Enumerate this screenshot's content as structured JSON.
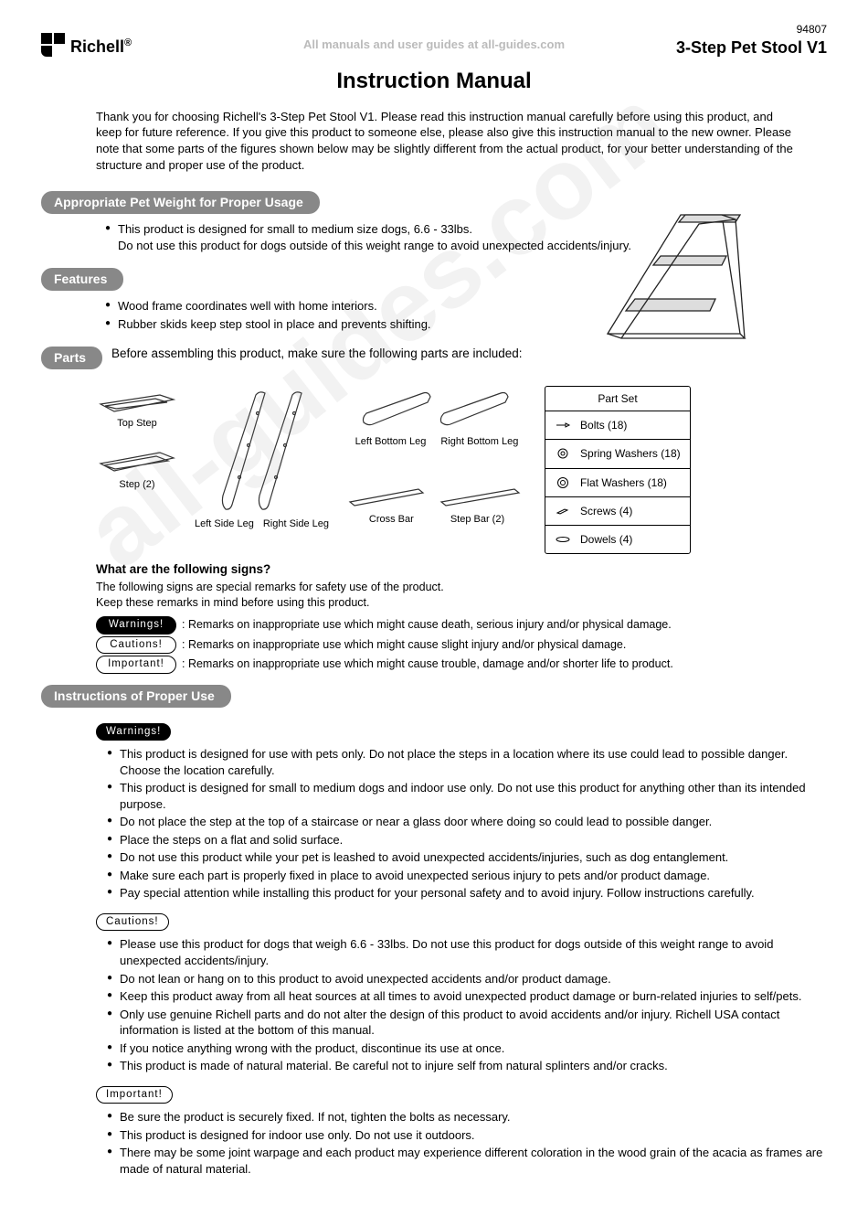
{
  "header": {
    "watermark_top": "All manuals and user guides at all-guides.com",
    "brand": "Richell",
    "model_no": "94807",
    "product_title": "3-Step Pet Stool V1",
    "main_title": "Instruction Manual"
  },
  "intro": "Thank you for choosing Richell's 3-Step Pet Stool V1. Please read this instruction manual carefully before using this product, and keep for future reference. If you give this product to someone else, please also give this instruction manual to the new owner. Please note that some parts of the figures shown below may be slightly different from the actual product, for your better understanding of the structure and proper use of the product.",
  "sections": {
    "weight": {
      "heading": "Appropriate Pet Weight for Proper Usage",
      "items": [
        "This product is designed for small to medium size dogs, 6.6 - 33lbs.\nDo not use this product for dogs outside of this weight range to avoid unexpected accidents/injury."
      ]
    },
    "features": {
      "heading": "Features",
      "items": [
        "Wood frame coordinates well with home interiors.",
        "Rubber skids keep step stool in place and prevents shifting."
      ]
    },
    "parts": {
      "heading": "Parts",
      "intro": "Before assembling this product, make sure the following parts are included:",
      "labels": {
        "top_step": "Top Step",
        "step2": "Step (2)",
        "left_side": "Left Side Leg",
        "right_side": "Right Side Leg",
        "left_bottom": "Left Bottom Leg",
        "right_bottom": "Right Bottom Leg",
        "cross_bar": "Cross Bar",
        "step_bar": "Step Bar (2)"
      },
      "part_set": {
        "title": "Part Set",
        "rows": [
          "Bolts (18)",
          "Spring Washers (18)",
          "Flat Washers (18)",
          "Screws (4)",
          "Dowels (4)"
        ]
      }
    },
    "signs": {
      "heading": "What are the following signs?",
      "intro": "The following signs are special remarks for safety use of the product.\nKeep these remarks in mind before using this product.",
      "rows": [
        {
          "badge": "Warnings!",
          "style": "dark",
          "desc": ": Remarks on inappropriate use which might cause death, serious injury and/or physical damage."
        },
        {
          "badge": "Cautions!",
          "style": "light",
          "desc": ": Remarks on inappropriate use which might cause slight injury and/or physical damage."
        },
        {
          "badge": "Important!",
          "style": "light",
          "desc": ": Remarks on inappropriate use which might cause trouble, damage and/or shorter life to product."
        }
      ]
    },
    "proper_use": {
      "heading": "Instructions of Proper Use",
      "groups": [
        {
          "badge": "Warnings!",
          "style": "dark",
          "items": [
            "This product is designed for use with pets only. Do not place the steps in a location where its use could lead to possible danger. Choose the location carefully.",
            "This product is designed for small to medium dogs and indoor use only. Do not use this product for anything other than its intended purpose.",
            "Do not place the step at the top of a staircase or near a glass door where doing so could lead to possible danger.",
            "Place the steps on a flat and solid surface.",
            "Do not use this product while your pet is leashed to avoid unexpected accidents/injuries, such as dog entanglement.",
            "Make sure each part is properly fixed in place to avoid unexpected serious injury to pets and/or product damage.",
            "Pay special attention while installing this product for your personal safety and to avoid injury. Follow instructions carefully."
          ]
        },
        {
          "badge": "Cautions!",
          "style": "light",
          "items": [
            "Please use this product for dogs that weigh 6.6 - 33lbs. Do not use this product for dogs outside of this weight range to avoid unexpected accidents/injury.",
            "Do not lean or hang on to this product to avoid unexpected accidents and/or product damage.",
            "Keep this product away from all heat sources at all times to avoid unexpected product damage or burn-related injuries to self/pets.",
            "Only use genuine Richell parts and do not alter the design of this product to avoid accidents and/or injury. Richell USA contact information is listed at the bottom of this manual.",
            "If you notice anything wrong with the product, discontinue its use at once.",
            "This product is made of natural material. Be careful not to injure self from natural splinters and/or cracks."
          ]
        },
        {
          "badge": "Important!",
          "style": "light",
          "items": [
            "Be sure the product is securely fixed. If not, tighten the bolts as necessary.",
            "This product is designed for indoor use only. Do not use it outdoors.",
            "There may be some joint warpage and each product may experience different coloration in the wood grain of the acacia as frames are made of natural material."
          ]
        }
      ]
    }
  },
  "style": {
    "pill_bg": "#888888",
    "pill_fg": "#ffffff",
    "text": "#000000",
    "watermark_color": "#bbbbbb"
  }
}
